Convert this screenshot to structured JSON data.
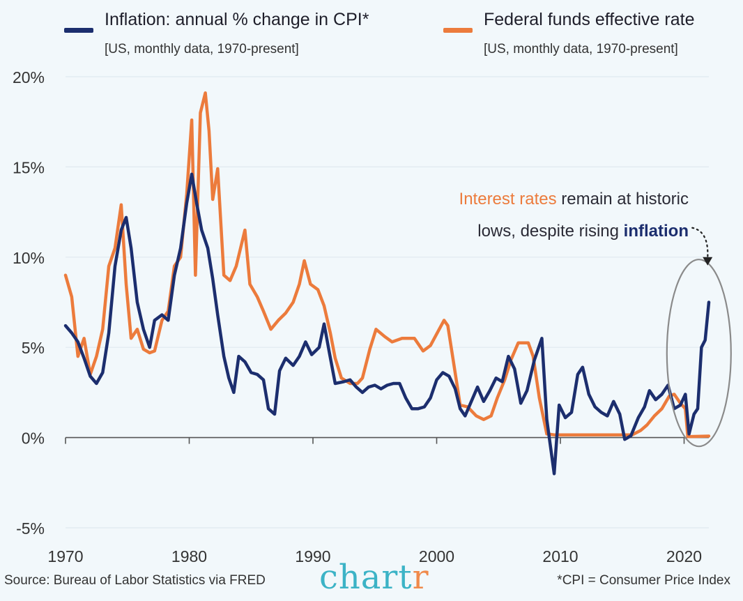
{
  "legend": {
    "cpi_title": "Inflation: annual % change in CPI*",
    "cpi_sub": "[US, monthly data, 1970-present]",
    "ffr_title": "Federal funds effective rate",
    "ffr_sub": "[US, monthly data, 1970-present]"
  },
  "annotation": {
    "part1_highlight": "Interest rates",
    "part1_rest": " remain at historic",
    "part2_start": "lows, despite rising ",
    "part2_highlight": "inflation"
  },
  "footer": {
    "source": "Source: Bureau of Labor Statistics via FRED",
    "logo_main": "chart",
    "logo_accent": "r",
    "note": "*CPI = Consumer Price Index"
  },
  "colors": {
    "inflation": "#1c2e6e",
    "fed_rate": "#ec7b3c",
    "background": "#f2f8fb",
    "grid": "#dfe9ef",
    "axis": "#555555",
    "ellipse": "#8a8a8a"
  },
  "chart_data": {
    "type": "line",
    "title": "",
    "xlabel": "",
    "ylabel": "",
    "xlim": [
      1970,
      2022
    ],
    "ylim": [
      -5,
      20
    ],
    "x_ticks": [
      1970,
      1980,
      1990,
      2000,
      2010,
      2020
    ],
    "x_tick_labels": [
      "1970",
      "1980",
      "1990",
      "2000",
      "2010",
      "2020"
    ],
    "y_ticks": [
      20,
      15,
      10,
      5,
      0,
      -5
    ],
    "y_tick_labels": [
      "20%",
      "15%",
      "10%",
      "5%",
      "0%",
      "-5%"
    ],
    "grid": true,
    "series": [
      {
        "name": "Inflation: annual % change in CPI*",
        "key": "inflation",
        "points": [
          [
            1970,
            6.2
          ],
          [
            1970.5,
            5.8
          ],
          [
            1971,
            5.3
          ],
          [
            1971.5,
            4.4
          ],
          [
            1972,
            3.4
          ],
          [
            1972.5,
            3.0
          ],
          [
            1973,
            3.6
          ],
          [
            1973.5,
            5.8
          ],
          [
            1974,
            9.5
          ],
          [
            1974.5,
            11.5
          ],
          [
            1974.9,
            12.2
          ],
          [
            1975.3,
            10.5
          ],
          [
            1975.8,
            7.5
          ],
          [
            1976.3,
            6.0
          ],
          [
            1976.8,
            5.0
          ],
          [
            1977.2,
            6.5
          ],
          [
            1977.8,
            6.8
          ],
          [
            1978.3,
            6.5
          ],
          [
            1978.8,
            9.0
          ],
          [
            1979.3,
            10.5
          ],
          [
            1979.8,
            13.0
          ],
          [
            1980.2,
            14.6
          ],
          [
            1980.6,
            13.0
          ],
          [
            1981,
            11.5
          ],
          [
            1981.5,
            10.5
          ],
          [
            1981.9,
            8.8
          ],
          [
            1982.3,
            6.8
          ],
          [
            1982.8,
            4.5
          ],
          [
            1983.2,
            3.3
          ],
          [
            1983.6,
            2.5
          ],
          [
            1984,
            4.5
          ],
          [
            1984.5,
            4.2
          ],
          [
            1985,
            3.6
          ],
          [
            1985.5,
            3.5
          ],
          [
            1986,
            3.2
          ],
          [
            1986.4,
            1.6
          ],
          [
            1986.9,
            1.3
          ],
          [
            1987.3,
            3.7
          ],
          [
            1987.8,
            4.4
          ],
          [
            1988.4,
            4.0
          ],
          [
            1988.9,
            4.5
          ],
          [
            1989.4,
            5.3
          ],
          [
            1989.9,
            4.6
          ],
          [
            1990.5,
            5.0
          ],
          [
            1990.9,
            6.3
          ],
          [
            1991.3,
            4.8
          ],
          [
            1991.8,
            3.0
          ],
          [
            1992.5,
            3.1
          ],
          [
            1993,
            3.2
          ],
          [
            1993.5,
            2.8
          ],
          [
            1994,
            2.5
          ],
          [
            1994.5,
            2.8
          ],
          [
            1995,
            2.9
          ],
          [
            1995.5,
            2.7
          ],
          [
            1996,
            2.9
          ],
          [
            1996.5,
            3.0
          ],
          [
            1997,
            3.0
          ],
          [
            1997.5,
            2.2
          ],
          [
            1998,
            1.6
          ],
          [
            1998.5,
            1.6
          ],
          [
            1999,
            1.7
          ],
          [
            1999.5,
            2.2
          ],
          [
            2000,
            3.2
          ],
          [
            2000.5,
            3.6
          ],
          [
            2001,
            3.4
          ],
          [
            2001.5,
            2.7
          ],
          [
            2001.9,
            1.6
          ],
          [
            2002.3,
            1.2
          ],
          [
            2002.8,
            2.0
          ],
          [
            2003.3,
            2.8
          ],
          [
            2003.8,
            2.0
          ],
          [
            2004.3,
            2.6
          ],
          [
            2004.8,
            3.3
          ],
          [
            2005.3,
            3.1
          ],
          [
            2005.8,
            4.5
          ],
          [
            2006.3,
            3.8
          ],
          [
            2006.8,
            1.9
          ],
          [
            2007.3,
            2.6
          ],
          [
            2007.9,
            4.3
          ],
          [
            2008.5,
            5.5
          ],
          [
            2008.9,
            1.0
          ],
          [
            2009.5,
            -2.0
          ],
          [
            2009.9,
            1.8
          ],
          [
            2010.4,
            1.1
          ],
          [
            2010.9,
            1.4
          ],
          [
            2011.4,
            3.5
          ],
          [
            2011.8,
            3.9
          ],
          [
            2012.3,
            2.4
          ],
          [
            2012.8,
            1.7
          ],
          [
            2013.3,
            1.4
          ],
          [
            2013.8,
            1.2
          ],
          [
            2014.3,
            2.0
          ],
          [
            2014.8,
            1.3
          ],
          [
            2015.2,
            -0.1
          ],
          [
            2015.7,
            0.1
          ],
          [
            2016.3,
            1.1
          ],
          [
            2016.8,
            1.7
          ],
          [
            2017.2,
            2.6
          ],
          [
            2017.7,
            2.1
          ],
          [
            2018.2,
            2.4
          ],
          [
            2018.7,
            2.9
          ],
          [
            2019.2,
            1.6
          ],
          [
            2019.7,
            1.8
          ],
          [
            2020.1,
            2.4
          ],
          [
            2020.4,
            0.2
          ],
          [
            2020.8,
            1.3
          ],
          [
            2021.1,
            1.6
          ],
          [
            2021.4,
            5.0
          ],
          [
            2021.7,
            5.4
          ],
          [
            2022,
            7.5
          ]
        ]
      },
      {
        "name": "Federal funds effective rate",
        "key": "fed_rate",
        "points": [
          [
            1970,
            9.0
          ],
          [
            1970.5,
            7.8
          ],
          [
            1971,
            4.5
          ],
          [
            1971.5,
            5.5
          ],
          [
            1972,
            3.5
          ],
          [
            1972.5,
            4.5
          ],
          [
            1973,
            6.0
          ],
          [
            1973.5,
            9.5
          ],
          [
            1974,
            10.5
          ],
          [
            1974.5,
            12.9
          ],
          [
            1974.9,
            8.5
          ],
          [
            1975.3,
            5.5
          ],
          [
            1975.8,
            6.0
          ],
          [
            1976.3,
            4.9
          ],
          [
            1976.8,
            4.7
          ],
          [
            1977.2,
            4.8
          ],
          [
            1977.8,
            6.5
          ],
          [
            1978.3,
            7.0
          ],
          [
            1978.8,
            9.5
          ],
          [
            1979.3,
            10.0
          ],
          [
            1979.8,
            13.5
          ],
          [
            1980.2,
            17.6
          ],
          [
            1980.5,
            9.0
          ],
          [
            1980.9,
            18.0
          ],
          [
            1981.3,
            19.1
          ],
          [
            1981.6,
            17.0
          ],
          [
            1981.9,
            13.2
          ],
          [
            1982.3,
            14.9
          ],
          [
            1982.8,
            9.0
          ],
          [
            1983.3,
            8.7
          ],
          [
            1983.8,
            9.5
          ],
          [
            1984.5,
            11.5
          ],
          [
            1984.9,
            8.5
          ],
          [
            1985.5,
            7.8
          ],
          [
            1986,
            7.0
          ],
          [
            1986.6,
            6.0
          ],
          [
            1987.2,
            6.5
          ],
          [
            1987.8,
            6.9
          ],
          [
            1988.4,
            7.5
          ],
          [
            1988.9,
            8.5
          ],
          [
            1989.3,
            9.8
          ],
          [
            1989.8,
            8.5
          ],
          [
            1990.4,
            8.2
          ],
          [
            1990.9,
            7.3
          ],
          [
            1991.4,
            5.8
          ],
          [
            1991.8,
            4.4
          ],
          [
            1992.3,
            3.3
          ],
          [
            1993,
            3.0
          ],
          [
            1993.6,
            3.0
          ],
          [
            1994,
            3.3
          ],
          [
            1994.6,
            4.9
          ],
          [
            1995.1,
            6.0
          ],
          [
            1995.8,
            5.6
          ],
          [
            1996.4,
            5.3
          ],
          [
            1997.2,
            5.5
          ],
          [
            1998.2,
            5.5
          ],
          [
            1998.9,
            4.8
          ],
          [
            1999.5,
            5.1
          ],
          [
            2000.2,
            6.0
          ],
          [
            2000.6,
            6.5
          ],
          [
            2000.9,
            6.2
          ],
          [
            2001.4,
            4.0
          ],
          [
            2001.9,
            1.8
          ],
          [
            2002.5,
            1.7
          ],
          [
            2003.2,
            1.2
          ],
          [
            2003.8,
            1.0
          ],
          [
            2004.4,
            1.2
          ],
          [
            2004.9,
            2.2
          ],
          [
            2005.5,
            3.2
          ],
          [
            2006,
            4.3
          ],
          [
            2006.6,
            5.25
          ],
          [
            2007.4,
            5.25
          ],
          [
            2007.8,
            4.5
          ],
          [
            2008.3,
            2.2
          ],
          [
            2008.9,
            0.2
          ],
          [
            2009.5,
            0.15
          ],
          [
            2012,
            0.15
          ],
          [
            2015.8,
            0.15
          ],
          [
            2016.5,
            0.4
          ],
          [
            2017,
            0.7
          ],
          [
            2017.6,
            1.2
          ],
          [
            2018.2,
            1.6
          ],
          [
            2018.8,
            2.3
          ],
          [
            2019.2,
            2.4
          ],
          [
            2019.7,
            1.9
          ],
          [
            2020.1,
            1.6
          ],
          [
            2020.3,
            0.05
          ],
          [
            2022,
            0.08
          ]
        ]
      }
    ],
    "annotation_target": {
      "x": 2021.2,
      "y": 5.0
    },
    "annotation_arrow_to": {
      "x": 2021.9,
      "y": 9.5
    }
  }
}
